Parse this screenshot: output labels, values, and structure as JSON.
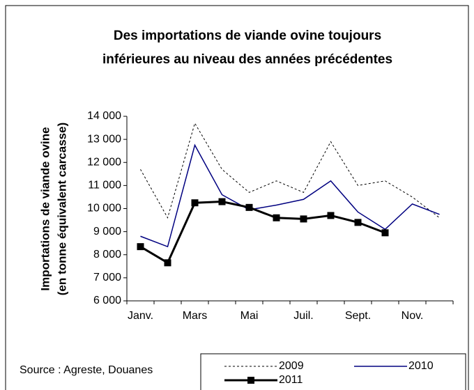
{
  "chart_data": {
    "type": "line",
    "title": [
      "Des importations de viande ovine  toujours",
      "inférieures au niveau des années précédentes"
    ],
    "ylabel": [
      "Importations de viande ovine",
      "(en tonne équivalent carcasse)"
    ],
    "source": "Source : Agreste, Douanes",
    "categories": [
      "Janv.",
      null,
      "Mars",
      null,
      "Mai",
      null,
      "Juil.",
      null,
      "Sept.",
      null,
      "Nov.",
      null
    ],
    "series": [
      {
        "name": "2009",
        "color": "#000000",
        "line_style": "dotted",
        "marker": "none",
        "values": [
          11700,
          9600,
          13700,
          11700,
          10700,
          11200,
          10700,
          12900,
          11000,
          11200,
          10500,
          9600
        ]
      },
      {
        "name": "2010",
        "color": "#000080",
        "line_style": "solid",
        "marker": "none",
        "values": [
          8800,
          8350,
          12750,
          10600,
          9950,
          10150,
          10400,
          11200,
          9850,
          9100,
          10200,
          9750
        ]
      },
      {
        "name": "2011",
        "color": "#000000",
        "line_style": "thick",
        "marker": "square",
        "values": [
          8350,
          7650,
          10250,
          10300,
          10050,
          9600,
          9550,
          9700,
          9400,
          8950,
          null,
          null
        ]
      }
    ],
    "ylim": [
      6000,
      14000
    ],
    "yticks": [
      {
        "value": 6000,
        "label": "6 000"
      },
      {
        "value": 7000,
        "label": "7 000"
      },
      {
        "value": 8000,
        "label": "8 000"
      },
      {
        "value": 9000,
        "label": "9 000"
      },
      {
        "value": 10000,
        "label": "10 000"
      },
      {
        "value": 11000,
        "label": "11 000"
      },
      {
        "value": 12000,
        "label": "12 000"
      },
      {
        "value": 13000,
        "label": "13 000"
      },
      {
        "value": 14000,
        "label": "14 000"
      }
    ]
  }
}
